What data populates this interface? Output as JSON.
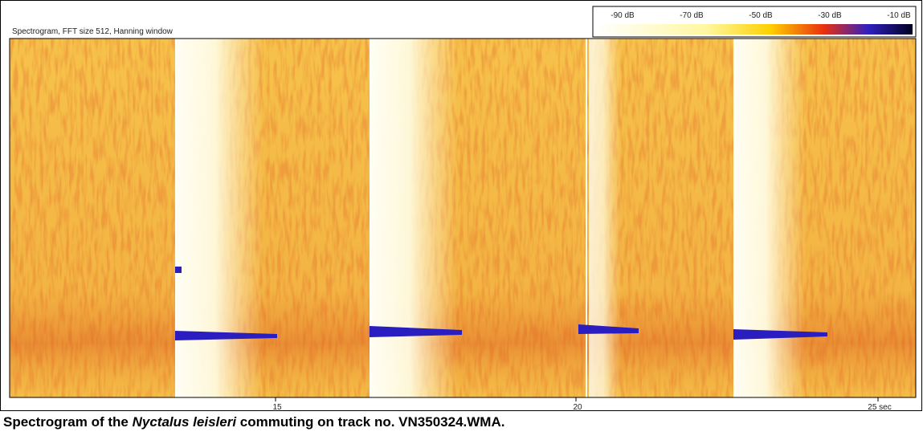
{
  "figure": {
    "header": "Spectrogram, FFT size 512, Hanning window",
    "colorbar_labels": [
      "-90 dB",
      "-70 dB",
      "-50 dB",
      "-30 dB",
      "-10 dB"
    ],
    "x_ticks": [
      "15",
      "20",
      "25 sec"
    ],
    "caption": {
      "before": "Spectrogram of the ",
      "species": "Nyctalus leisleri",
      "after": " commuting on track no. VN350324.WMA."
    }
  }
}
